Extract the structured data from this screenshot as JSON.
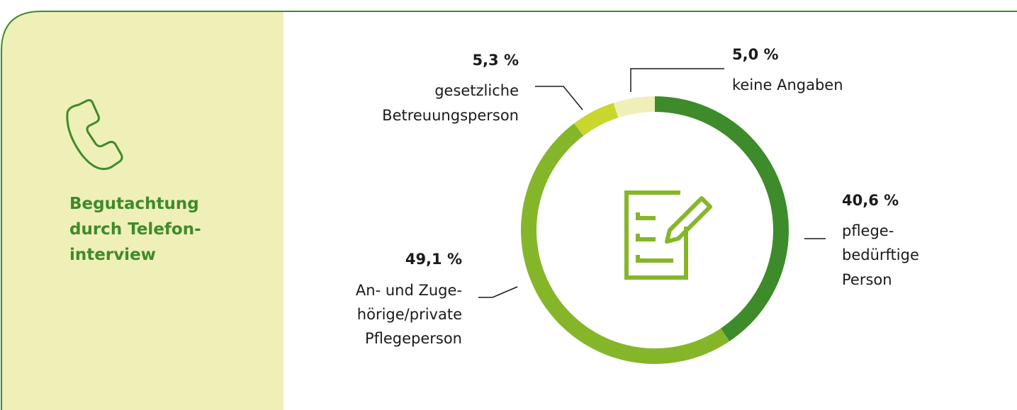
{
  "panel_title_lines": [
    "Begutachtung",
    "durch Telefon-",
    "interview"
  ],
  "chart_data": {
    "type": "pie",
    "donut": true,
    "categories": [
      [
        "pflege-",
        "bedürftige",
        "Person"
      ],
      [
        "An- und Zuge-",
        "hörige/private",
        "Pflegeperson"
      ],
      [
        "gesetzliche",
        "Betreuungsperson"
      ],
      [
        "keine Angaben"
      ]
    ],
    "values": [
      40.6,
      49.1,
      5.3,
      5.0
    ],
    "value_labels": [
      "40,6 %",
      "49,1 %",
      "5,3 %",
      "5,0 %"
    ],
    "colors": [
      "#3d8b2a",
      "#85b62a",
      "#c8d62e",
      "#eef0b8"
    ]
  }
}
